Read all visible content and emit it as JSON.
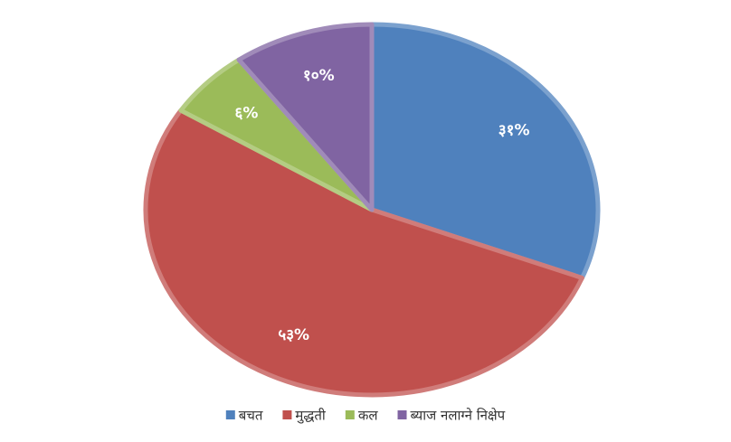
{
  "chart_data": {
    "type": "pie",
    "categories": [
      "बचत",
      "मुद्धती",
      "कल",
      "ब्याज नलाग्ने निक्षेप"
    ],
    "values": [
      31,
      53,
      6,
      10
    ],
    "value_labels": [
      "३१%",
      "५३%",
      "६%",
      "१०%"
    ],
    "colors": [
      "#4f81bd",
      "#c0504d",
      "#9bbb59",
      "#8064a2"
    ],
    "legend": "bottom"
  }
}
